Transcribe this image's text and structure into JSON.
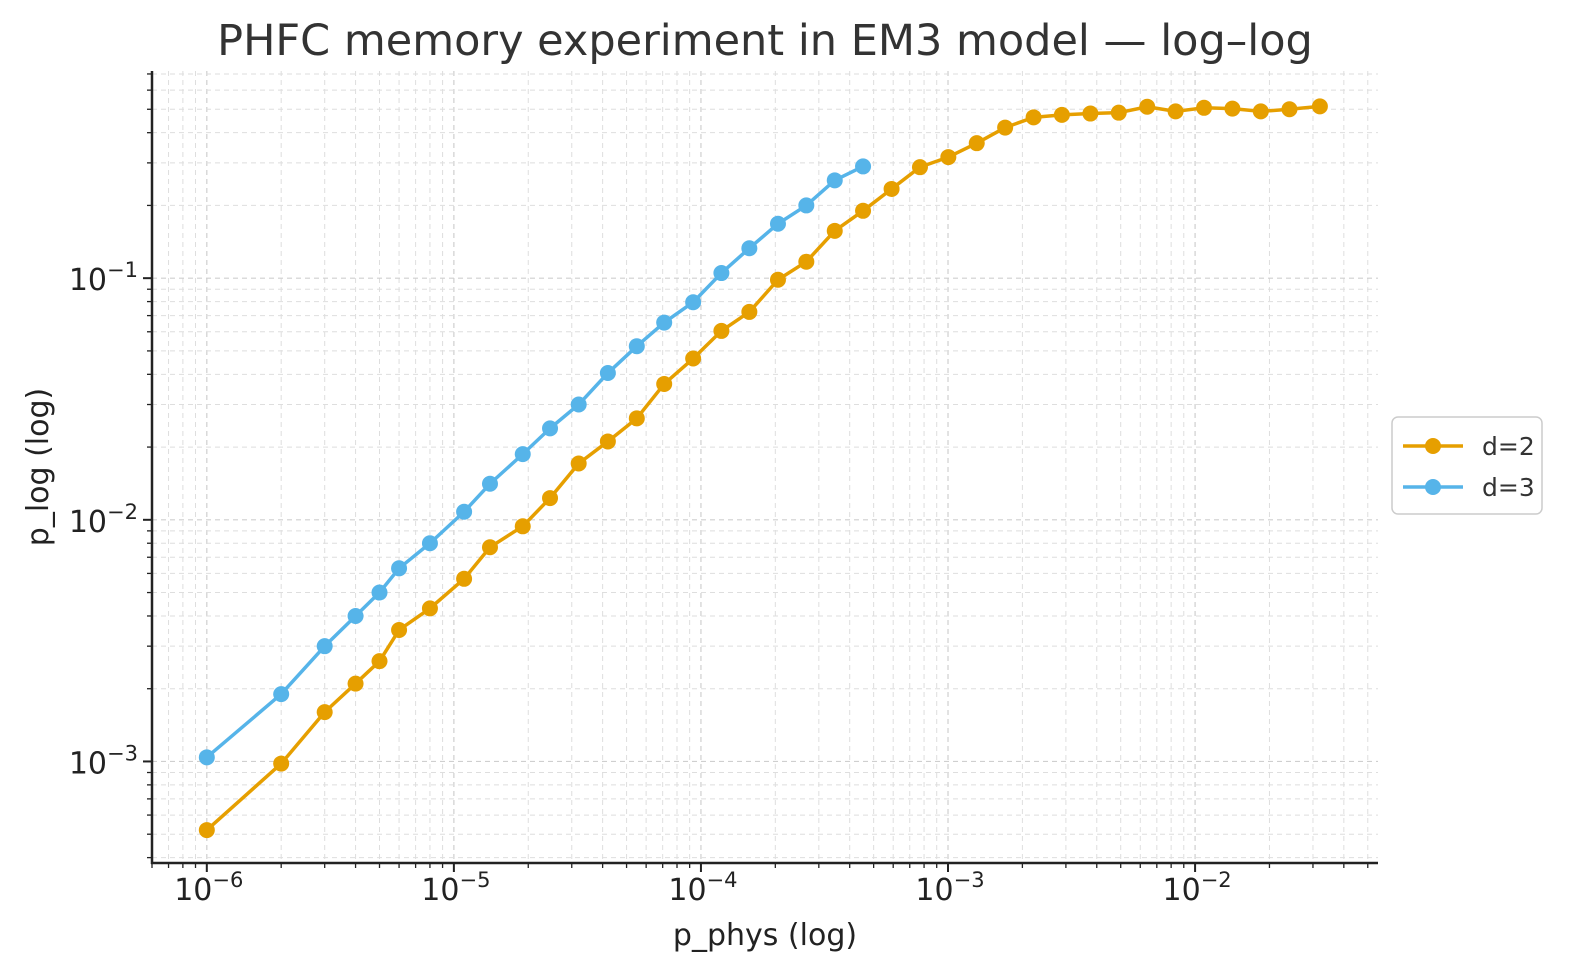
{
  "chart_data": {
    "type": "line",
    "title": "PHFC memory experiment in EM3 model — log–log",
    "xlabel": "p_phys (log)",
    "ylabel": "p_log (log)",
    "x_scale": "log",
    "y_scale": "log",
    "xlim": [
      6e-07,
      0.055
    ],
    "ylim": [
      0.00038,
      0.72
    ],
    "x_ticks": [
      1e-06,
      1e-05,
      0.0001,
      0.001,
      0.01
    ],
    "x_tick_labels": [
      {
        "base": "10",
        "exp": "−6"
      },
      {
        "base": "10",
        "exp": "−5"
      },
      {
        "base": "10",
        "exp": "−4"
      },
      {
        "base": "10",
        "exp": "−3"
      },
      {
        "base": "10",
        "exp": "−2"
      }
    ],
    "y_ticks": [
      0.001,
      0.01,
      0.1
    ],
    "y_tick_labels": [
      {
        "base": "10",
        "exp": "−3"
      },
      {
        "base": "10",
        "exp": "−2"
      },
      {
        "base": "10",
        "exp": "−1"
      }
    ],
    "grid": true,
    "legend_position": "outside-right",
    "series": [
      {
        "name": "d=2",
        "color": "#E69F00",
        "x": [
          1e-06,
          2e-06,
          3e-06,
          4e-06,
          5e-06,
          6e-06,
          8e-06,
          1.1e-05,
          1.4e-05,
          1.9e-05,
          2.45e-05,
          3.2e-05,
          4.2e-05,
          5.5e-05,
          7.1e-05,
          9.3e-05,
          0.000121,
          0.000157,
          0.000205,
          0.000267,
          0.000348,
          0.000453,
          0.000591,
          0.00077,
          0.001003,
          0.001307,
          0.001703,
          0.00222,
          0.00289,
          0.00377,
          0.00491,
          0.0064,
          0.00834,
          0.01087,
          0.01416,
          0.01845,
          0.0241,
          0.032
        ],
        "y": [
          0.00052,
          0.00098,
          0.0016,
          0.0021,
          0.0026,
          0.0035,
          0.0043,
          0.0057,
          0.0077,
          0.0094,
          0.0123,
          0.0171,
          0.0211,
          0.0263,
          0.0365,
          0.0465,
          0.0605,
          0.0725,
          0.0985,
          0.117,
          0.157,
          0.19,
          0.234,
          0.288,
          0.317,
          0.362,
          0.42,
          0.463,
          0.474,
          0.48,
          0.484,
          0.512,
          0.49,
          0.507,
          0.503,
          0.49,
          0.5,
          0.514
        ]
      },
      {
        "name": "d=3",
        "color": "#56B4E9",
        "x": [
          1e-06,
          2e-06,
          3e-06,
          4e-06,
          5e-06,
          6e-06,
          8e-06,
          1.1e-05,
          1.4e-05,
          1.9e-05,
          2.45e-05,
          3.2e-05,
          4.2e-05,
          5.5e-05,
          7.1e-05,
          9.3e-05,
          0.000121,
          0.000157,
          0.000205,
          0.000267,
          0.000348,
          0.000453
        ],
        "y": [
          0.00104,
          0.0019,
          0.003,
          0.004,
          0.005,
          0.0063,
          0.008,
          0.0108,
          0.0141,
          0.0187,
          0.0239,
          0.03,
          0.0405,
          0.0523,
          0.0655,
          0.0795,
          0.105,
          0.133,
          0.168,
          0.2,
          0.254,
          0.29
        ]
      }
    ]
  }
}
